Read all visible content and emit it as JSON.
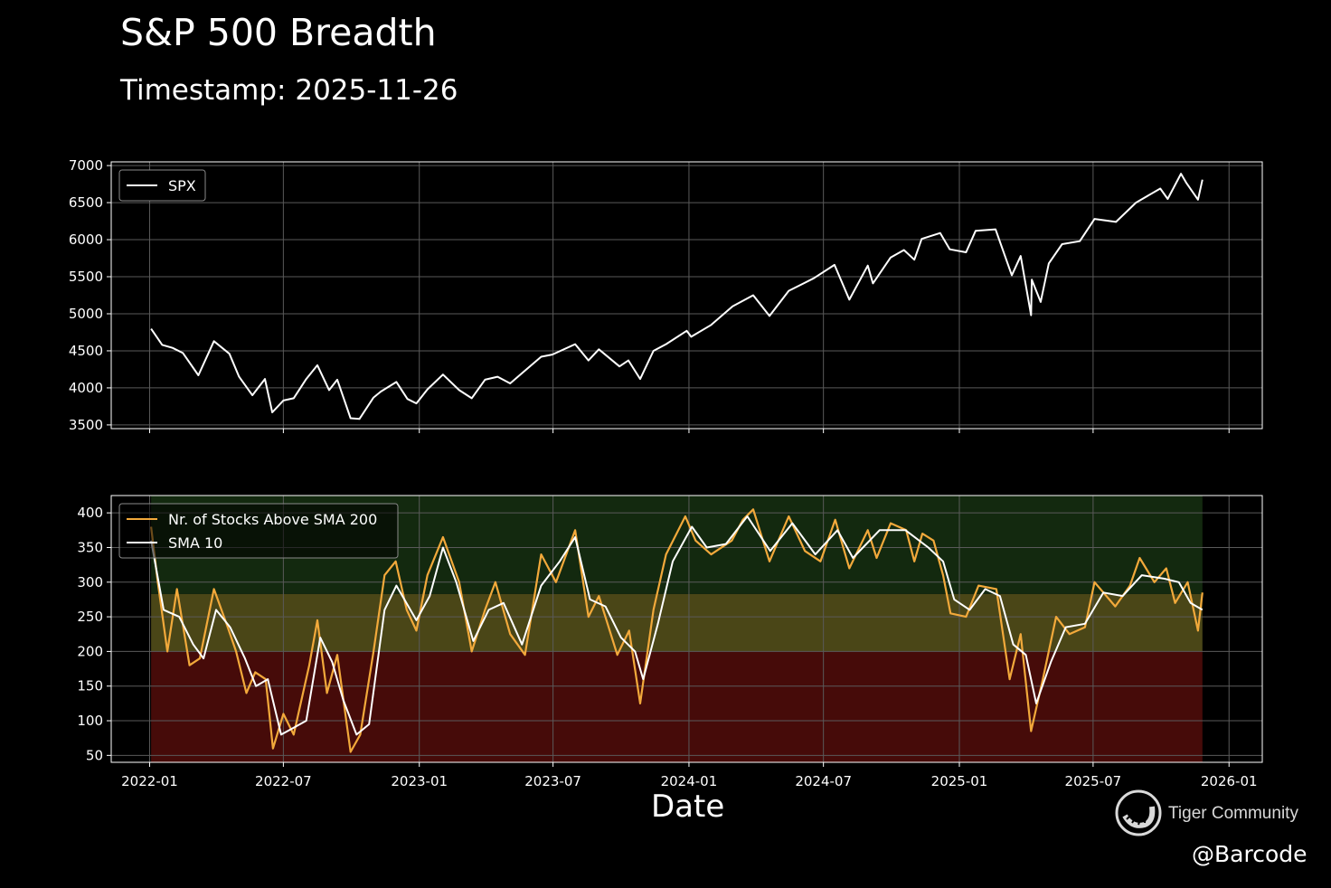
{
  "title": "S&P 500 Breadth",
  "subtitle": "Timestamp: 2025-11-26",
  "watermark": "Tiger Community",
  "handle": "@Barcode",
  "chart_data": [
    {
      "type": "line",
      "series": [
        {
          "name": "SPX",
          "color": "#ffffff",
          "points": [
            [
              "2022-01-03",
              4797
            ],
            [
              "2022-01-18",
              4580
            ],
            [
              "2022-02-01",
              4540
            ],
            [
              "2022-02-15",
              4470
            ],
            [
              "2022-03-08",
              4170
            ],
            [
              "2022-03-29",
              4630
            ],
            [
              "2022-04-19",
              4460
            ],
            [
              "2022-05-02",
              4150
            ],
            [
              "2022-05-20",
              3900
            ],
            [
              "2022-06-06",
              4120
            ],
            [
              "2022-06-16",
              3670
            ],
            [
              "2022-07-01",
              3830
            ],
            [
              "2022-07-15",
              3860
            ],
            [
              "2022-08-01",
              4120
            ],
            [
              "2022-08-16",
              4305
            ],
            [
              "2022-09-01",
              3970
            ],
            [
              "2022-09-12",
              4110
            ],
            [
              "2022-09-30",
              3590
            ],
            [
              "2022-10-12",
              3580
            ],
            [
              "2022-10-31",
              3870
            ],
            [
              "2022-11-10",
              3950
            ],
            [
              "2022-12-01",
              4080
            ],
            [
              "2022-12-16",
              3850
            ],
            [
              "2022-12-28",
              3790
            ],
            [
              "2023-01-12",
              3980
            ],
            [
              "2023-02-02",
              4180
            ],
            [
              "2023-02-24",
              3970
            ],
            [
              "2023-03-13",
              3860
            ],
            [
              "2023-03-31",
              4110
            ],
            [
              "2023-04-17",
              4150
            ],
            [
              "2023-05-04",
              4060
            ],
            [
              "2023-05-19",
              4190
            ],
            [
              "2023-06-15",
              4420
            ],
            [
              "2023-06-30",
              4450
            ],
            [
              "2023-07-31",
              4590
            ],
            [
              "2023-08-18",
              4370
            ],
            [
              "2023-09-01",
              4520
            ],
            [
              "2023-09-29",
              4290
            ],
            [
              "2023-10-11",
              4370
            ],
            [
              "2023-10-27",
              4120
            ],
            [
              "2023-11-14",
              4500
            ],
            [
              "2023-12-01",
              4590
            ],
            [
              "2023-12-29",
              4770
            ],
            [
              "2024-01-04",
              4690
            ],
            [
              "2024-01-31",
              4850
            ],
            [
              "2024-02-29",
              5100
            ],
            [
              "2024-03-28",
              5250
            ],
            [
              "2024-04-19",
              4970
            ],
            [
              "2024-05-15",
              5310
            ],
            [
              "2024-06-18",
              5480
            ],
            [
              "2024-07-16",
              5660
            ],
            [
              "2024-08-05",
              5190
            ],
            [
              "2024-08-30",
              5650
            ],
            [
              "2024-09-06",
              5410
            ],
            [
              "2024-09-30",
              5760
            ],
            [
              "2024-10-18",
              5860
            ],
            [
              "2024-11-01",
              5730
            ],
            [
              "2024-11-11",
              6010
            ],
            [
              "2024-12-06",
              6090
            ],
            [
              "2024-12-19",
              5870
            ],
            [
              "2025-01-10",
              5830
            ],
            [
              "2025-01-23",
              6120
            ],
            [
              "2025-02-19",
              6140
            ],
            [
              "2025-03-13",
              5520
            ],
            [
              "2025-03-25",
              5780
            ],
            [
              "2025-04-08",
              4980
            ],
            [
              "2025-04-09",
              5460
            ],
            [
              "2025-04-21",
              5160
            ],
            [
              "2025-05-02",
              5680
            ],
            [
              "2025-05-20",
              5940
            ],
            [
              "2025-06-13",
              5980
            ],
            [
              "2025-07-03",
              6280
            ],
            [
              "2025-08-01",
              6240
            ],
            [
              "2025-08-28",
              6500
            ],
            [
              "2025-09-30",
              6690
            ],
            [
              "2025-10-10",
              6550
            ],
            [
              "2025-10-28",
              6890
            ],
            [
              "2025-11-04",
              6770
            ],
            [
              "2025-11-20",
              6540
            ],
            [
              "2025-11-26",
              6810
            ]
          ]
        }
      ],
      "xlim": [
        "2021-11-10",
        "2026-02-15"
      ],
      "ylim": [
        3450,
        7050
      ],
      "yticks": [
        3500,
        4000,
        4500,
        5000,
        5500,
        6000,
        6500,
        7000
      ],
      "xticks": [
        "2022-01",
        "2022-07",
        "2023-01",
        "2023-07",
        "2024-01",
        "2024-07",
        "2025-01",
        "2025-07",
        "2026-01"
      ],
      "grid": true,
      "legend": "upper left"
    },
    {
      "type": "line",
      "xlabel": "Date",
      "series": [
        {
          "name": "Nr. of Stocks Above SMA 200",
          "color": "#f2a93b",
          "points": [
            [
              "2022-01-03",
              380
            ],
            [
              "2022-01-12",
              300
            ],
            [
              "2022-01-25",
              200
            ],
            [
              "2022-02-07",
              290
            ],
            [
              "2022-02-24",
              180
            ],
            [
              "2022-03-10",
              190
            ],
            [
              "2022-03-29",
              290
            ],
            [
              "2022-04-15",
              240
            ],
            [
              "2022-04-28",
              200
            ],
            [
              "2022-05-12",
              140
            ],
            [
              "2022-05-24",
              170
            ],
            [
              "2022-06-07",
              160
            ],
            [
              "2022-06-17",
              60
            ],
            [
              "2022-07-01",
              110
            ],
            [
              "2022-07-15",
              80
            ],
            [
              "2022-08-05",
              180
            ],
            [
              "2022-08-16",
              245
            ],
            [
              "2022-08-29",
              140
            ],
            [
              "2022-09-12",
              195
            ],
            [
              "2022-09-30",
              55
            ],
            [
              "2022-10-13",
              80
            ],
            [
              "2022-10-31",
              200
            ],
            [
              "2022-11-15",
              310
            ],
            [
              "2022-11-30",
              330
            ],
            [
              "2022-12-15",
              260
            ],
            [
              "2022-12-28",
              230
            ],
            [
              "2023-01-12",
              310
            ],
            [
              "2023-02-02",
              365
            ],
            [
              "2023-02-24",
              300
            ],
            [
              "2023-03-13",
              200
            ],
            [
              "2023-03-31",
              260
            ],
            [
              "2023-04-14",
              300
            ],
            [
              "2023-05-04",
              225
            ],
            [
              "2023-05-24",
              195
            ],
            [
              "2023-06-15",
              340
            ],
            [
              "2023-07-05",
              300
            ],
            [
              "2023-07-31",
              375
            ],
            [
              "2023-08-18",
              250
            ],
            [
              "2023-09-01",
              280
            ],
            [
              "2023-09-26",
              195
            ],
            [
              "2023-10-12",
              230
            ],
            [
              "2023-10-27",
              125
            ],
            [
              "2023-11-14",
              260
            ],
            [
              "2023-12-01",
              340
            ],
            [
              "2023-12-27",
              395
            ],
            [
              "2024-01-10",
              360
            ],
            [
              "2024-01-31",
              340
            ],
            [
              "2024-02-28",
              360
            ],
            [
              "2024-03-14",
              390
            ],
            [
              "2024-03-28",
              405
            ],
            [
              "2024-04-19",
              330
            ],
            [
              "2024-05-15",
              395
            ],
            [
              "2024-06-06",
              345
            ],
            [
              "2024-06-27",
              330
            ],
            [
              "2024-07-17",
              390
            ],
            [
              "2024-08-05",
              320
            ],
            [
              "2024-08-30",
              375
            ],
            [
              "2024-09-11",
              335
            ],
            [
              "2024-09-30",
              385
            ],
            [
              "2024-10-21",
              375
            ],
            [
              "2024-11-01",
              330
            ],
            [
              "2024-11-12",
              370
            ],
            [
              "2024-11-27",
              360
            ],
            [
              "2024-12-10",
              310
            ],
            [
              "2024-12-20",
              255
            ],
            [
              "2025-01-10",
              250
            ],
            [
              "2025-01-27",
              295
            ],
            [
              "2025-02-20",
              290
            ],
            [
              "2025-03-10",
              160
            ],
            [
              "2025-03-25",
              225
            ],
            [
              "2025-04-08",
              85
            ],
            [
              "2025-04-24",
              160
            ],
            [
              "2025-05-12",
              250
            ],
            [
              "2025-05-30",
              225
            ],
            [
              "2025-06-20",
              235
            ],
            [
              "2025-07-03",
              300
            ],
            [
              "2025-07-31",
              265
            ],
            [
              "2025-08-20",
              295
            ],
            [
              "2025-09-02",
              335
            ],
            [
              "2025-09-22",
              300
            ],
            [
              "2025-10-08",
              320
            ],
            [
              "2025-10-20",
              270
            ],
            [
              "2025-11-06",
              300
            ],
            [
              "2025-11-20",
              230
            ],
            [
              "2025-11-26",
              285
            ]
          ]
        },
        {
          "name": "SMA 10",
          "color": "#ffffff",
          "points": [
            [
              "2022-01-03",
              360
            ],
            [
              "2022-01-20",
              260
            ],
            [
              "2022-02-10",
              250
            ],
            [
              "2022-03-01",
              210
            ],
            [
              "2022-03-15",
              190
            ],
            [
              "2022-04-01",
              260
            ],
            [
              "2022-04-20",
              235
            ],
            [
              "2022-05-10",
              190
            ],
            [
              "2022-05-25",
              150
            ],
            [
              "2022-06-10",
              160
            ],
            [
              "2022-06-28",
              80
            ],
            [
              "2022-07-15",
              90
            ],
            [
              "2022-08-01",
              100
            ],
            [
              "2022-08-20",
              220
            ],
            [
              "2022-09-05",
              185
            ],
            [
              "2022-09-20",
              130
            ],
            [
              "2022-10-08",
              80
            ],
            [
              "2022-10-25",
              95
            ],
            [
              "2022-11-15",
              260
            ],
            [
              "2022-12-01",
              295
            ],
            [
              "2022-12-28",
              245
            ],
            [
              "2023-01-15",
              280
            ],
            [
              "2023-02-02",
              350
            ],
            [
              "2023-02-20",
              300
            ],
            [
              "2023-03-15",
              215
            ],
            [
              "2023-04-05",
              260
            ],
            [
              "2023-04-25",
              270
            ],
            [
              "2023-05-20",
              210
            ],
            [
              "2023-06-15",
              295
            ],
            [
              "2023-07-10",
              330
            ],
            [
              "2023-07-31",
              365
            ],
            [
              "2023-08-20",
              275
            ],
            [
              "2023-09-10",
              265
            ],
            [
              "2023-10-01",
              220
            ],
            [
              "2023-10-20",
              200
            ],
            [
              "2023-10-31",
              160
            ],
            [
              "2023-11-20",
              240
            ],
            [
              "2023-12-10",
              330
            ],
            [
              "2024-01-05",
              380
            ],
            [
              "2024-01-25",
              350
            ],
            [
              "2024-02-20",
              355
            ],
            [
              "2024-03-20",
              395
            ],
            [
              "2024-04-20",
              345
            ],
            [
              "2024-05-20",
              385
            ],
            [
              "2024-06-20",
              340
            ],
            [
              "2024-07-20",
              375
            ],
            [
              "2024-08-10",
              335
            ],
            [
              "2024-09-15",
              375
            ],
            [
              "2024-10-20",
              375
            ],
            [
              "2024-11-20",
              350
            ],
            [
              "2024-12-10",
              330
            ],
            [
              "2024-12-25",
              275
            ],
            [
              "2025-01-15",
              260
            ],
            [
              "2025-02-05",
              290
            ],
            [
              "2025-02-25",
              280
            ],
            [
              "2025-03-15",
              210
            ],
            [
              "2025-04-01",
              195
            ],
            [
              "2025-04-15",
              125
            ],
            [
              "2025-05-05",
              185
            ],
            [
              "2025-05-25",
              235
            ],
            [
              "2025-06-20",
              240
            ],
            [
              "2025-07-15",
              285
            ],
            [
              "2025-08-10",
              280
            ],
            [
              "2025-09-05",
              310
            ],
            [
              "2025-10-05",
              305
            ],
            [
              "2025-10-25",
              300
            ],
            [
              "2025-11-10",
              270
            ],
            [
              "2025-11-26",
              260
            ]
          ]
        }
      ],
      "bands": [
        {
          "from": 200,
          "to": 283,
          "color": "#4a4617",
          "label": ""
        },
        {
          "from": 283,
          "to": 425,
          "color": "#13290f",
          "label": ""
        },
        {
          "from": 0,
          "to": 200,
          "color": "#460b09",
          "label": ""
        }
      ],
      "bands_x": [
        "2022-01-03",
        "2025-11-26"
      ],
      "xlim": [
        "2021-11-10",
        "2026-02-15"
      ],
      "ylim": [
        40,
        425
      ],
      "yticks": [
        50,
        100,
        150,
        200,
        250,
        300,
        350,
        400
      ],
      "xticks": [
        "2022-01",
        "2022-07",
        "2023-01",
        "2023-07",
        "2024-01",
        "2024-07",
        "2025-01",
        "2025-07",
        "2026-01"
      ],
      "grid": true,
      "legend": "upper left"
    }
  ]
}
